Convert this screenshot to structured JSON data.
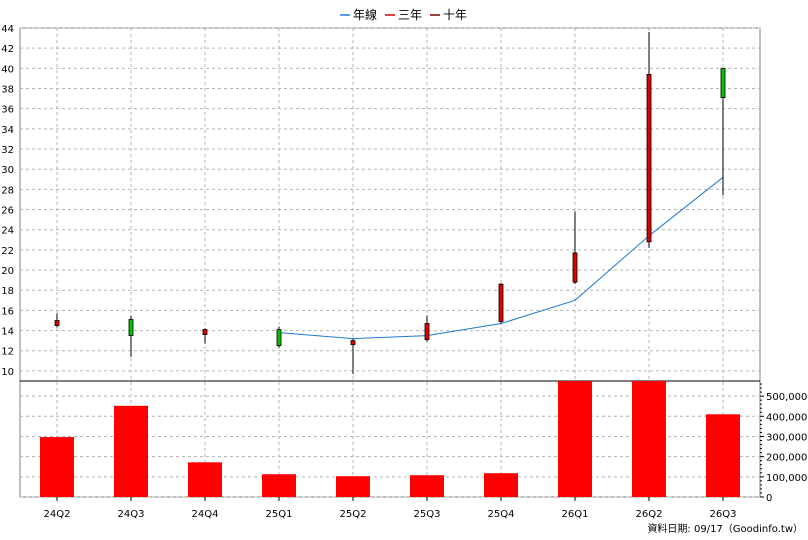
{
  "chart_data": {
    "type": "candlestick",
    "legend": [
      "年線",
      "三年",
      "十年"
    ],
    "categories": [
      "24Q2",
      "24Q3",
      "24Q4",
      "25Q1",
      "25Q2",
      "25Q3",
      "25Q4",
      "26Q1",
      "26Q2",
      "26Q3"
    ],
    "price_axis": {
      "ylim": [
        9,
        44
      ],
      "ticks": [
        10,
        12,
        14,
        16,
        18,
        20,
        22,
        24,
        26,
        28,
        30,
        32,
        34,
        36,
        38,
        40,
        42,
        44
      ]
    },
    "volume_axis": {
      "ylim": [
        0,
        575000
      ],
      "ticks": [
        0,
        100000,
        200000,
        300000,
        400000,
        500000
      ],
      "tick_labels": [
        "0",
        "100,000",
        "200,000",
        "300,000",
        "400,000",
        "500,000"
      ]
    },
    "candles": [
      {
        "q": "24Q2",
        "open": 15.0,
        "close": 14.5,
        "high": 15.7,
        "low": 14.3
      },
      {
        "q": "24Q3",
        "open": 13.5,
        "close": 15.1,
        "high": 15.5,
        "low": 11.4
      },
      {
        "q": "24Q4",
        "open": 14.1,
        "close": 13.6,
        "high": 14.2,
        "low": 12.7
      },
      {
        "q": "25Q1",
        "open": 12.5,
        "close": 14.1,
        "high": 14.4,
        "low": 12.3
      },
      {
        "q": "25Q2",
        "open": 13.0,
        "close": 12.6,
        "high": 13.2,
        "low": 9.7
      },
      {
        "q": "25Q3",
        "open": 14.7,
        "close": 13.1,
        "high": 15.5,
        "low": 12.9
      },
      {
        "q": "25Q4",
        "open": 18.6,
        "close": 14.9,
        "high": 18.7,
        "low": 14.7
      },
      {
        "q": "26Q1",
        "open": 21.7,
        "close": 18.8,
        "high": 25.8,
        "low": 18.6
      },
      {
        "q": "26Q2",
        "open": 39.4,
        "close": 22.8,
        "high": 43.6,
        "low": 22.2
      },
      {
        "q": "26Q3",
        "open": 37.1,
        "close": 40.0,
        "high": 40.0,
        "low": 27.4
      }
    ],
    "ma_line": {
      "name": "年線",
      "start_index": 3,
      "values": [
        13.8,
        13.2,
        13.5,
        14.7,
        17.0,
        23.4,
        29.2
      ]
    },
    "volume": [
      297000,
      452000,
      172000,
      113000,
      103000,
      108000,
      118000,
      592000,
      592000,
      410000
    ],
    "colors": {
      "up": "#00c000",
      "down": "#e00000",
      "volume": "#ff0000",
      "ma": "#1e7ad2",
      "grid": "#b4b4b4"
    },
    "footer": "資料日期: 09/17（Goodinfo.tw）",
    "grid": true
  }
}
